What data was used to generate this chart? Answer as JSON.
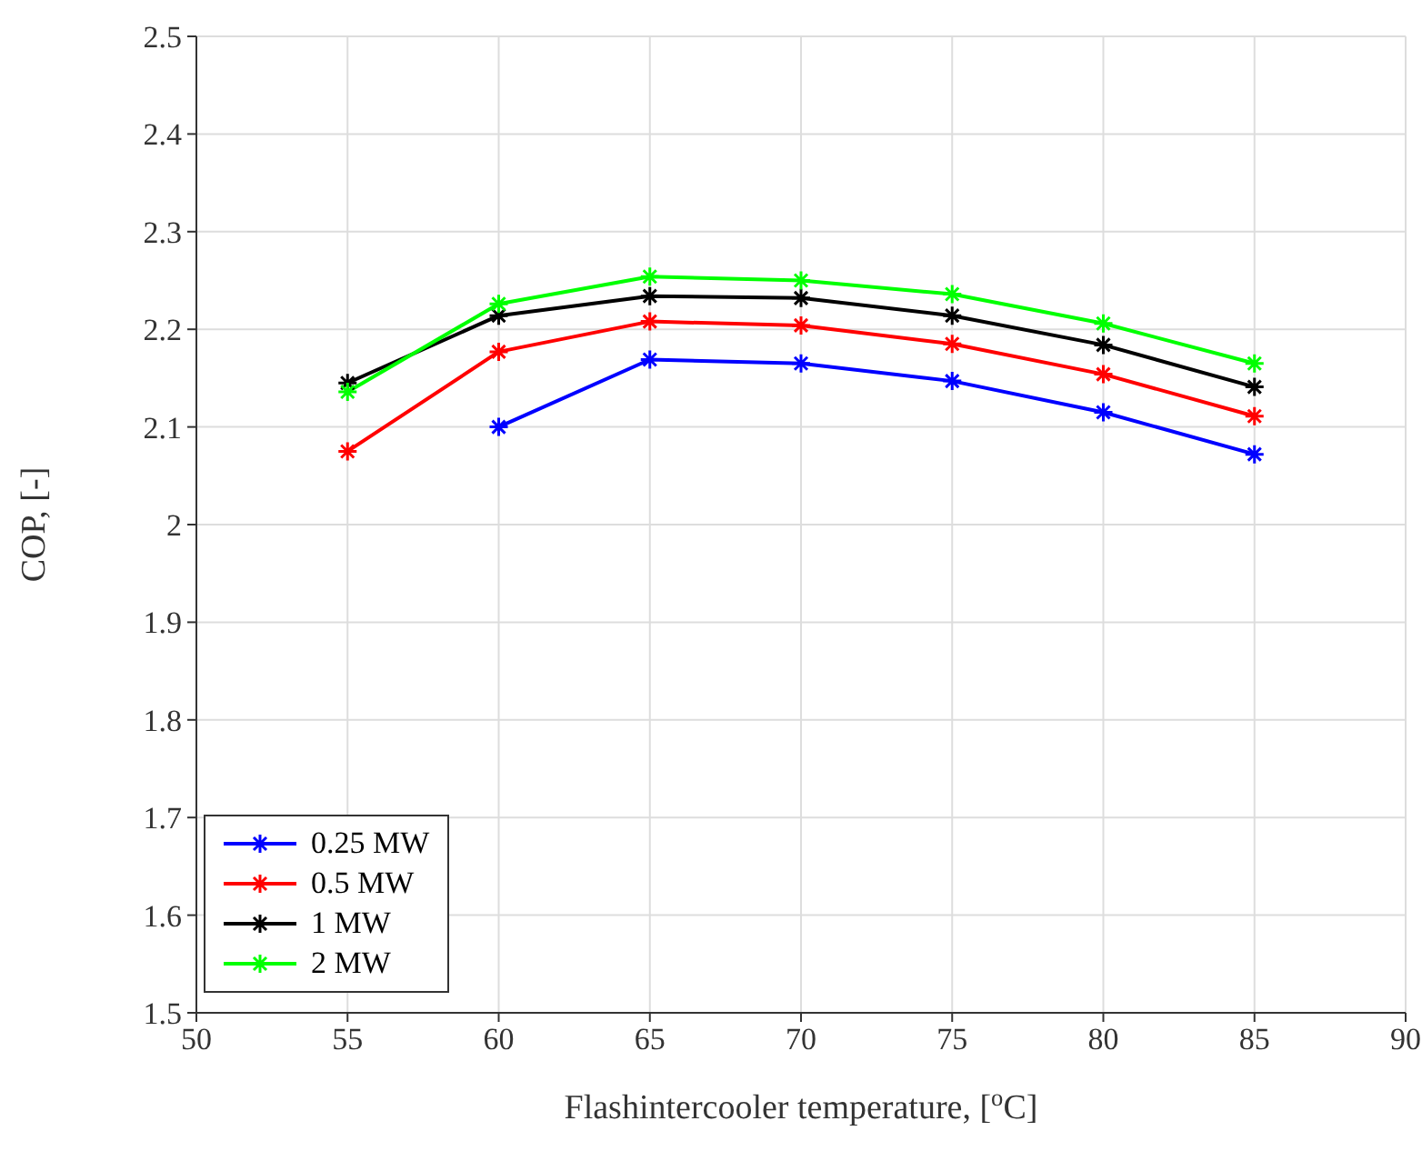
{
  "chart_data": {
    "type": "line",
    "xlabel": "Flashintercooler temperature, [$^{o}$C]",
    "ylabel": "COP, [-]",
    "x": [
      55,
      60,
      65,
      70,
      75,
      80,
      85
    ],
    "series": [
      {
        "name": "0.25 MW",
        "color": "#0000ff",
        "values": [
          null,
          2.1,
          2.169,
          2.165,
          2.147,
          2.115,
          2.072
        ]
      },
      {
        "name": "0.5 MW",
        "color": "#ff0000",
        "values": [
          2.075,
          2.177,
          2.208,
          2.204,
          2.185,
          2.154,
          2.111
        ]
      },
      {
        "name": "1 MW",
        "color": "#000000",
        "values": [
          2.145,
          2.214,
          2.234,
          2.232,
          2.214,
          2.184,
          2.141
        ]
      },
      {
        "name": "2 MW",
        "color": "#00ff00",
        "values": [
          2.136,
          2.226,
          2.254,
          2.25,
          2.236,
          2.206,
          2.165
        ]
      }
    ],
    "xlim": [
      50,
      90
    ],
    "xticks": [
      50,
      55,
      60,
      65,
      70,
      75,
      80,
      85,
      90
    ],
    "ylim": [
      1.5,
      2.5
    ],
    "yticks": [
      1.5,
      1.6,
      1.7,
      1.8,
      1.9,
      2,
      2.1,
      2.2,
      2.3,
      2.4,
      2.5
    ],
    "grid": true,
    "legend": "bottom left",
    "marker": "cross",
    "line_style": "solid"
  }
}
